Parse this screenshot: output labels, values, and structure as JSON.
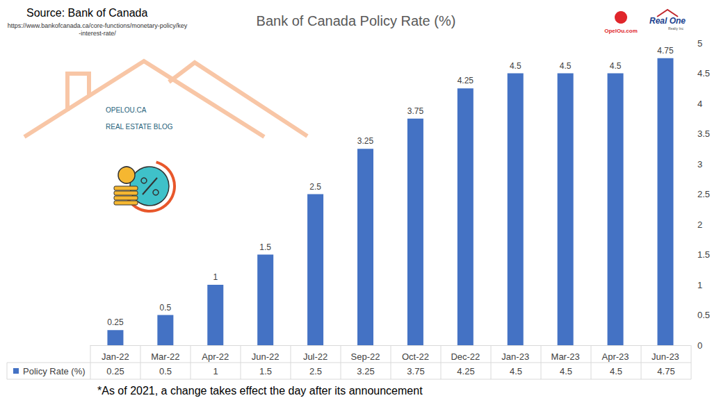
{
  "chart_data": {
    "type": "bar",
    "title": "Bank of Canada Policy Rate (%)",
    "source": "Source: Bank of Canada",
    "source_url": "https://www.bankofcanada.ca/core-functions/monetary-policy/key-interest-rate/",
    "footnote": "*As of 2021, a change takes effect the day after its announcement",
    "annotations": [
      "OPELOU.CA",
      "REAL ESTATE BLOG",
      "OpelOu.com",
      "Real One",
      "Realty Inc"
    ],
    "categories": [
      "Jan-22",
      "Mar-22",
      "Apr-22",
      "Jun-22",
      "Jul-22",
      "Sep-22",
      "Oct-22",
      "Dec-22",
      "Jan-23",
      "Mar-23",
      "Apr-23",
      "Jun-23"
    ],
    "series": [
      {
        "name": "Policy Rate (%)",
        "color": "#4472c4",
        "values": [
          0.25,
          0.5,
          1,
          1.5,
          2.5,
          3.25,
          3.75,
          4.25,
          4.5,
          4.5,
          4.5,
          4.75
        ]
      }
    ],
    "ylim": [
      0,
      5
    ],
    "yticks": [
      0,
      0.5,
      1,
      1.5,
      2,
      2.5,
      3,
      3.5,
      4,
      4.5,
      5
    ],
    "grid": false,
    "data_labels": true,
    "legend": "bottom"
  }
}
